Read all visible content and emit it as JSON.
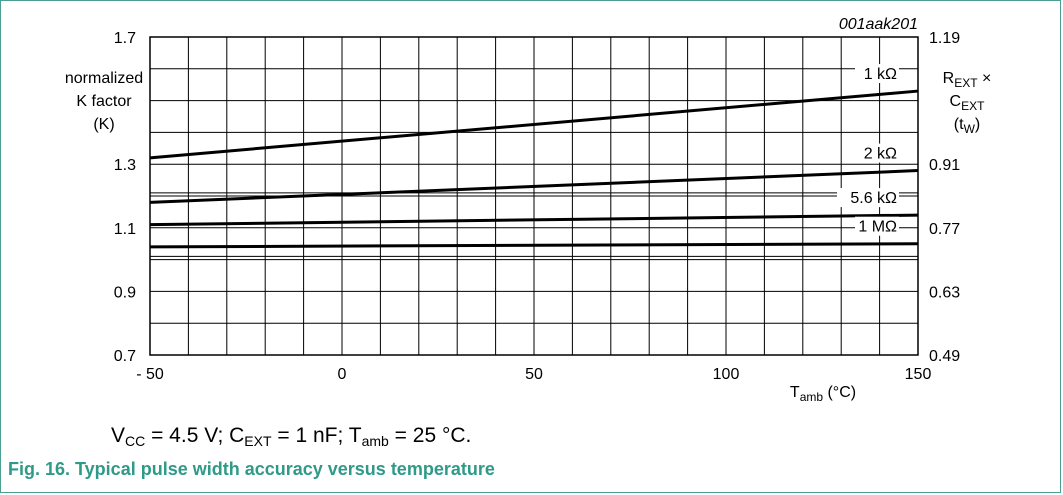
{
  "chart_data": {
    "type": "line",
    "figure_id": "001aak201",
    "x": {
      "label_main": "T",
      "label_sub": "amb",
      "label_unit": " (°C)",
      "range": [
        -50,
        150
      ],
      "tick_labels": [
        "- 50",
        "0",
        "50",
        "100",
        "150"
      ],
      "tick_values": [
        -50,
        0,
        50,
        100,
        150
      ]
    },
    "y_left": {
      "label_lines": [
        "normalized",
        "K factor",
        "(K)"
      ],
      "range": [
        0.7,
        1.7
      ],
      "tick_labels": [
        "1.7",
        "1.3",
        "1.1",
        "0.9",
        "0.7"
      ],
      "tick_values": [
        1.7,
        1.3,
        1.1,
        0.9,
        0.7
      ]
    },
    "y_right": {
      "label_line1_main": "R",
      "label_line1_sub": "EXT",
      "label_line1_suffix": " ×",
      "label_line2_main": "C",
      "label_line2_sub": "EXT",
      "label_line3_prefix": "(t",
      "label_line3_sub": "W",
      "label_line3_suffix": ")",
      "tick_labels": [
        "1.19",
        "0.91",
        "0.77",
        "0.63",
        "0.49"
      ]
    },
    "grid": true,
    "series": [
      {
        "name": "1 kΩ",
        "x": [
          -50,
          150
        ],
        "y": [
          1.32,
          1.53
        ]
      },
      {
        "name": "2 kΩ",
        "x": [
          -50,
          150
        ],
        "y": [
          1.18,
          1.28
        ]
      },
      {
        "name": "5.6 kΩ",
        "x": [
          -50,
          150
        ],
        "y": [
          1.11,
          1.14
        ]
      },
      {
        "name": "1 MΩ",
        "x": [
          -50,
          150
        ],
        "y": [
          1.04,
          1.05
        ]
      }
    ]
  },
  "conditions": {
    "vcc_main": "V",
    "vcc_sub": "CC",
    "vcc_value": " = 4.5 V; ",
    "cext_main": "C",
    "cext_sub": "EXT",
    "cext_value": " = 1 nF; ",
    "tamb_main": "T",
    "tamb_sub": "amb",
    "tamb_value": " = 25 °C."
  },
  "caption": "Fig. 16.  Typical pulse width accuracy versus temperature",
  "colors": {
    "frame": "#4a9e92",
    "caption": "#2e9a87",
    "ink": "#000000"
  }
}
